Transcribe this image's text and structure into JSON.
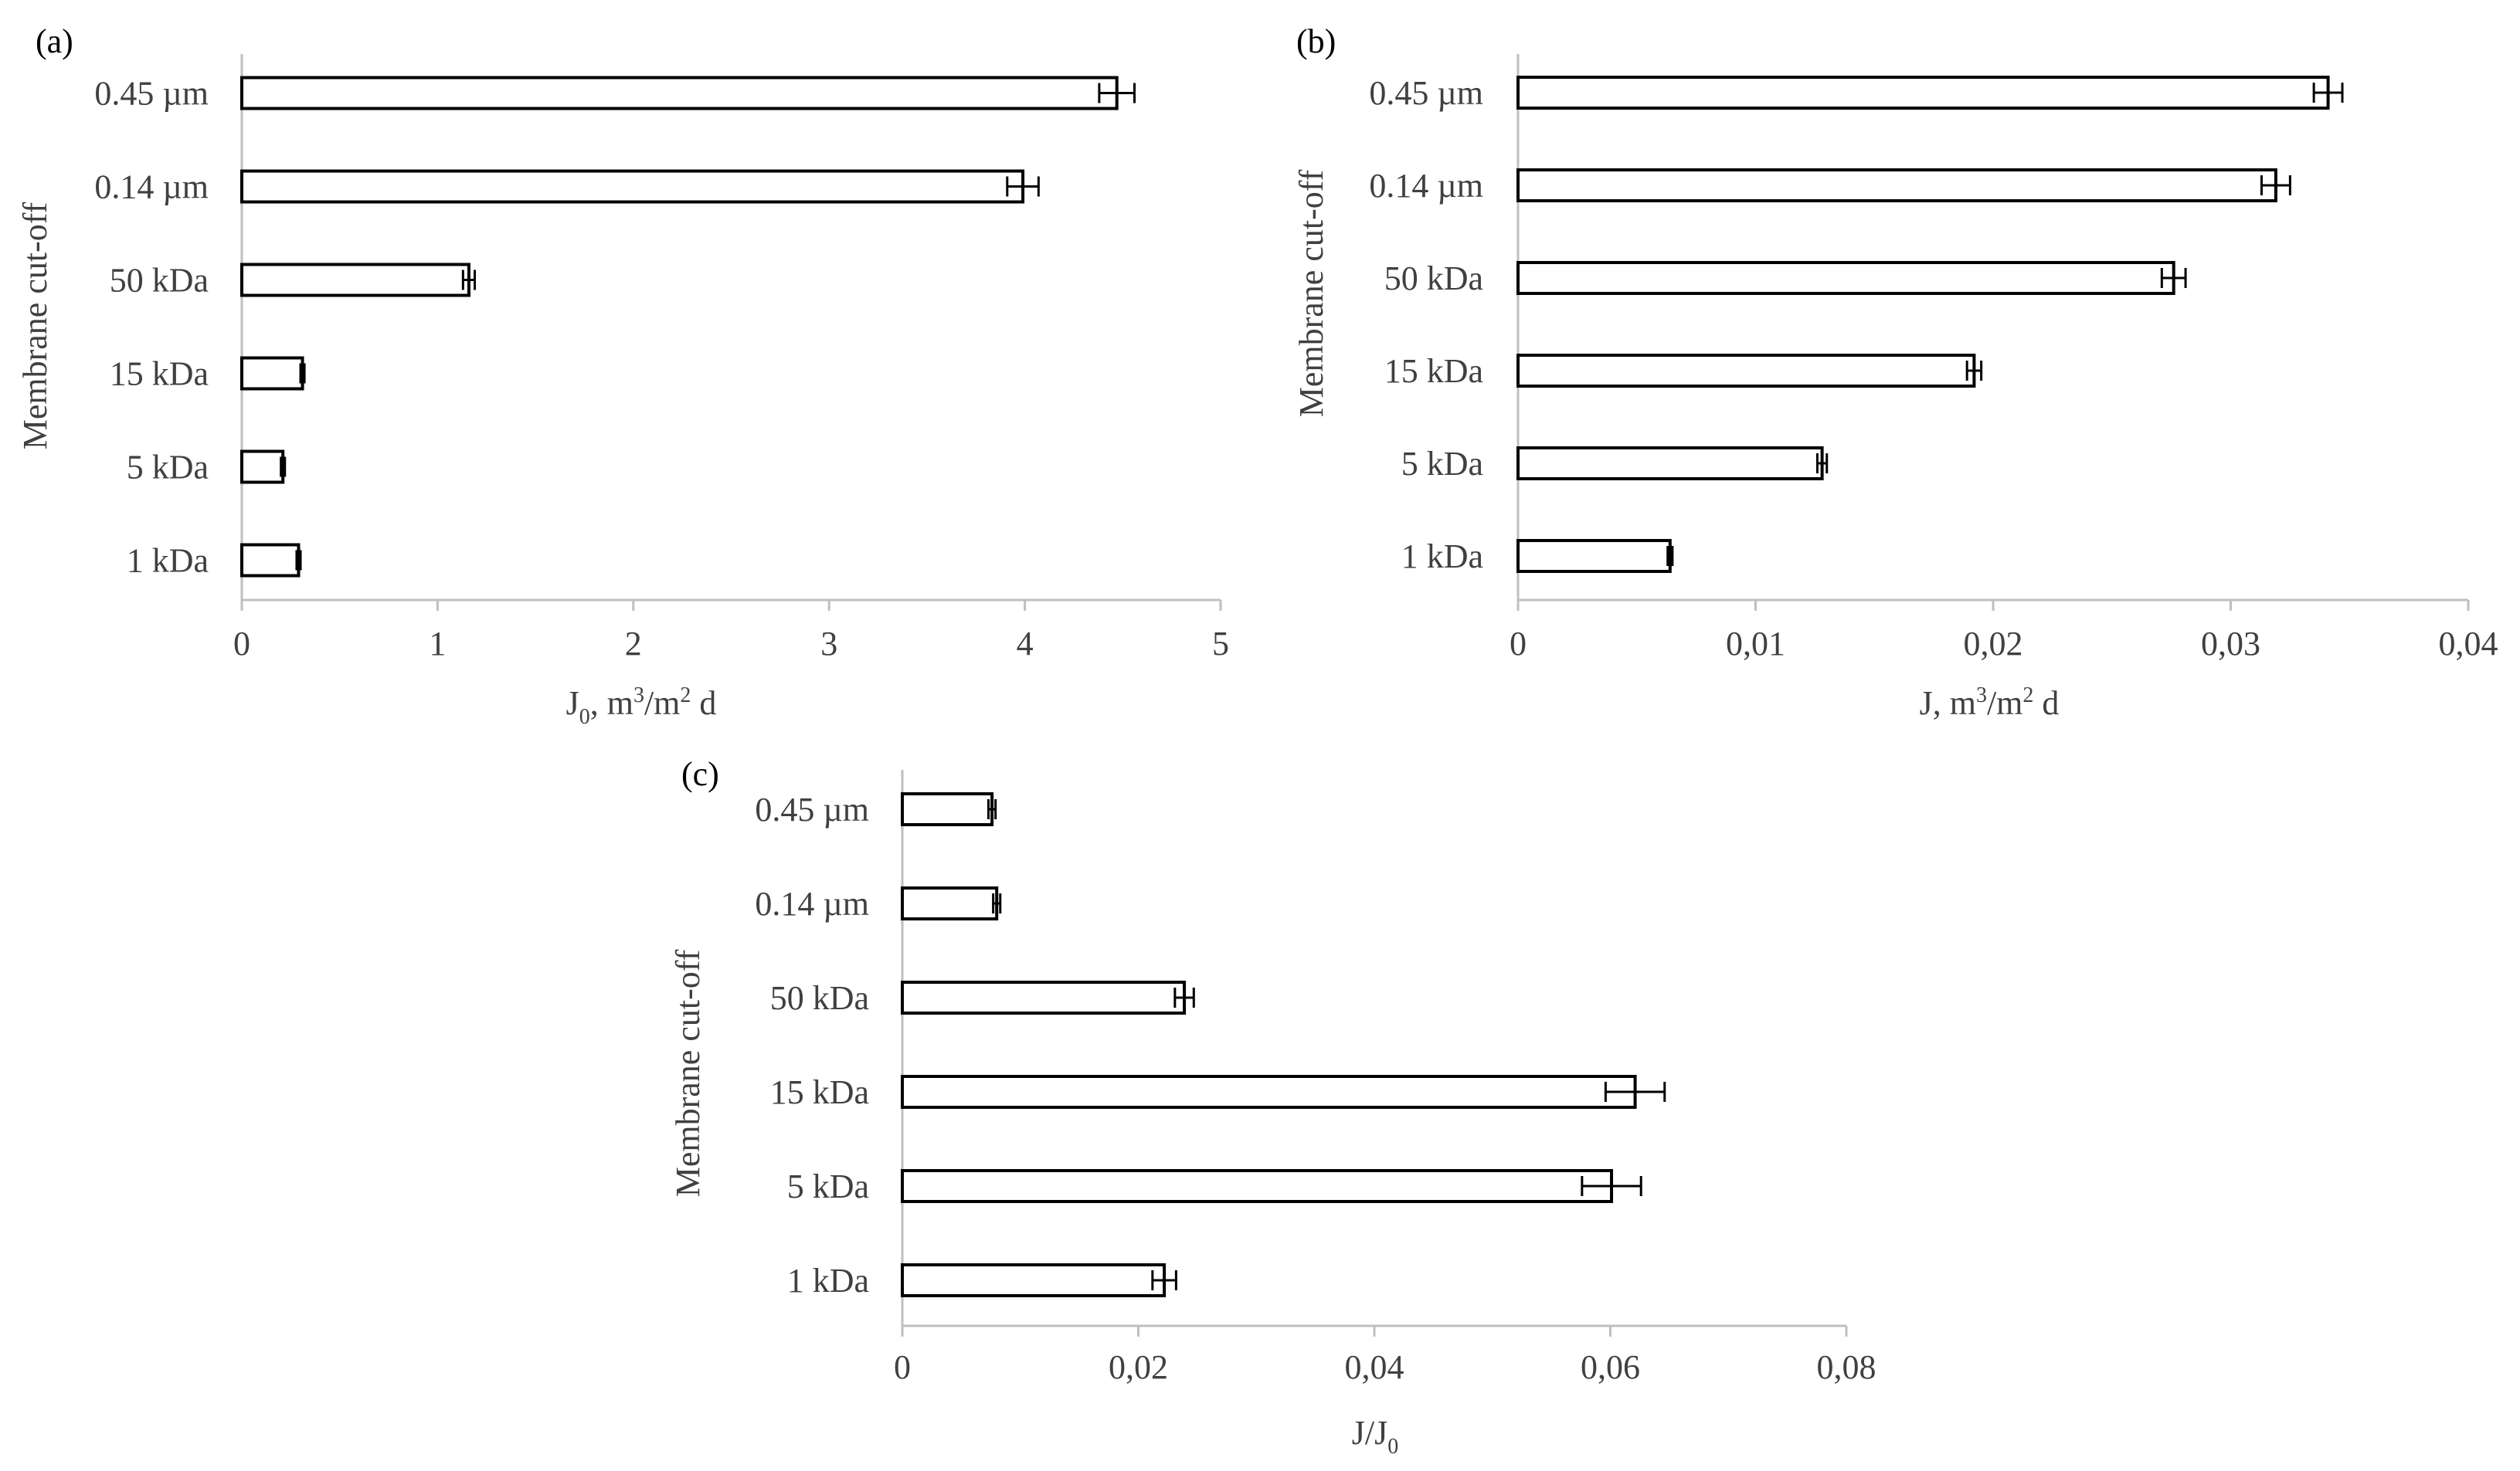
{
  "chart_data": [
    {
      "panel": "(a)",
      "type": "bar",
      "orientation": "horizontal",
      "categories": [
        "0.45 µm",
        "0.14 µm",
        "50 kDa",
        "15 kDa",
        "5 kDa",
        "1 kDa"
      ],
      "values": [
        4.47,
        3.99,
        1.16,
        0.31,
        0.21,
        0.29
      ],
      "errors": [
        0.09,
        0.08,
        0.03,
        0.01,
        0.01,
        0.01
      ],
      "xlim": [
        0,
        5
      ],
      "xticks": [
        "0",
        "1",
        "2",
        "3",
        "4",
        "5"
      ],
      "xtick_values": [
        0,
        1,
        2,
        3,
        4,
        5
      ],
      "xlabel": {
        "main": "J",
        "sub": "0",
        "rest": ", m",
        "sup": "3",
        "rest2": "/m",
        "sup2": "2",
        "rest3": " d"
      },
      "ylabel": "Membrane cut-off"
    },
    {
      "panel": "(b)",
      "type": "bar",
      "orientation": "horizontal",
      "categories": [
        "0.45 µm",
        "0.14 µm",
        "50 kDa",
        "15 kDa",
        "5 kDa",
        "1 kDa"
      ],
      "values": [
        0.0341,
        0.0319,
        0.0276,
        0.0192,
        0.0128,
        0.0064
      ],
      "errors": [
        0.0006,
        0.0006,
        0.0005,
        0.0003,
        0.0002,
        0.0001
      ],
      "xlim": [
        0,
        0.04
      ],
      "xticks": [
        "0",
        "0,01",
        "0,02",
        "0,03",
        "0,04"
      ],
      "xtick_values": [
        0,
        0.01,
        0.02,
        0.03,
        0.04
      ],
      "xlabel": {
        "main": "J",
        "sub": "",
        "rest": ", m",
        "sup": "3",
        "rest2": "/m",
        "sup2": "2",
        "rest3": " d"
      },
      "ylabel": "Membrane cut-off"
    },
    {
      "panel": "(c)",
      "type": "bar",
      "orientation": "horizontal",
      "categories": [
        "0.45 µm",
        "0.14 µm",
        "50 kDa",
        "15 kDa",
        "5 kDa",
        "1 kDa"
      ],
      "values": [
        0.0076,
        0.008,
        0.0239,
        0.0621,
        0.0601,
        0.0222
      ],
      "errors": [
        0.0003,
        0.0003,
        0.0008,
        0.0025,
        0.0025,
        0.001
      ],
      "xlim": [
        0,
        0.08
      ],
      "xticks": [
        "0",
        "0,02",
        "0,04",
        "0,06",
        "0,08"
      ],
      "xtick_values": [
        0,
        0.02,
        0.04,
        0.06,
        0.08
      ],
      "xlabel": {
        "main": "J/J",
        "sub": "0",
        "rest": "",
        "sup": "",
        "rest2": "",
        "sup2": "",
        "rest3": ""
      },
      "ylabel": "Membrane cut-off"
    }
  ]
}
